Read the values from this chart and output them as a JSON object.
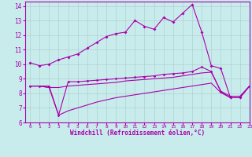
{
  "title": "",
  "xlabel": "Windchill (Refroidissement éolien,°C)",
  "ylabel": "",
  "background_color": "#c8ecec",
  "line_color": "#aa00aa",
  "grid_color": "#b0d0d0",
  "xlim": [
    -0.5,
    23
  ],
  "ylim": [
    6,
    14.3
  ],
  "yticks": [
    6,
    7,
    8,
    9,
    10,
    11,
    12,
    13,
    14
  ],
  "xticks": [
    0,
    1,
    2,
    3,
    4,
    5,
    6,
    7,
    8,
    9,
    10,
    11,
    12,
    13,
    14,
    15,
    16,
    17,
    18,
    19,
    20,
    21,
    22,
    23
  ],
  "series1_x": [
    0,
    1,
    2,
    3,
    4,
    5,
    6,
    7,
    8,
    9,
    10,
    11,
    12,
    13,
    14,
    15,
    16,
    17,
    18,
    19,
    20,
    21,
    22,
    23
  ],
  "series1_y": [
    10.1,
    9.9,
    10.0,
    10.3,
    10.5,
    10.7,
    11.1,
    11.5,
    11.9,
    12.1,
    12.2,
    13.0,
    12.6,
    12.4,
    13.2,
    12.9,
    13.5,
    14.1,
    12.2,
    9.9,
    9.7,
    7.7,
    7.7,
    8.5
  ],
  "series2_x": [
    0,
    1,
    2,
    3,
    4,
    5,
    6,
    7,
    8,
    9,
    10,
    11,
    12,
    13,
    14,
    15,
    16,
    17,
    18,
    19,
    20,
    21,
    22,
    23
  ],
  "series2_y": [
    8.5,
    8.5,
    8.5,
    6.5,
    8.8,
    8.8,
    8.85,
    8.9,
    8.95,
    9.0,
    9.05,
    9.1,
    9.15,
    9.2,
    9.3,
    9.35,
    9.4,
    9.5,
    9.8,
    9.5,
    8.1,
    7.7,
    7.7,
    8.5
  ],
  "series3_x": [
    0,
    1,
    2,
    3,
    4,
    5,
    6,
    7,
    8,
    9,
    10,
    11,
    12,
    13,
    14,
    15,
    16,
    17,
    18,
    19,
    20,
    21,
    22,
    23
  ],
  "series3_y": [
    8.5,
    8.5,
    8.4,
    8.4,
    8.5,
    8.55,
    8.6,
    8.65,
    8.7,
    8.75,
    8.85,
    8.9,
    8.95,
    9.0,
    9.05,
    9.1,
    9.2,
    9.3,
    9.4,
    9.45,
    8.15,
    7.8,
    7.8,
    8.5
  ],
  "series4_x": [
    0,
    1,
    2,
    3,
    4,
    5,
    6,
    7,
    8,
    9,
    10,
    11,
    12,
    13,
    14,
    15,
    16,
    17,
    18,
    19,
    20,
    21,
    22,
    23
  ],
  "series4_y": [
    8.5,
    8.5,
    8.4,
    6.5,
    6.8,
    7.0,
    7.2,
    7.4,
    7.55,
    7.7,
    7.8,
    7.9,
    8.0,
    8.1,
    8.2,
    8.3,
    8.4,
    8.5,
    8.6,
    8.7,
    8.05,
    7.7,
    7.7,
    8.5
  ]
}
